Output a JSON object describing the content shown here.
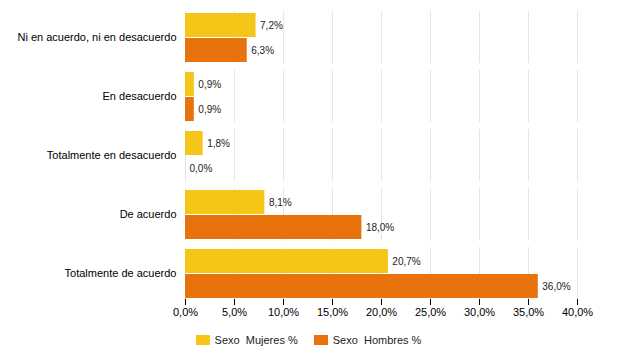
{
  "chart_data": {
    "type": "bar",
    "orientation": "horizontal",
    "categories": [
      "Totalmente de acuerdo",
      "De acuerdo",
      "Totalmente en desacuerdo",
      "En desacuerdo",
      "Ni en acuerdo, ni en desacuerdo"
    ],
    "series": [
      {
        "name": "Sexo  Mujeres %",
        "color": "#F5C518",
        "values": [
          20.7,
          8.1,
          1.8,
          0.9,
          7.2
        ],
        "value_labels": [
          "20,7%",
          "8,1%",
          "1,8%",
          "0,9%",
          "7,2%"
        ]
      },
      {
        "name": "Sexo  Hombres %",
        "color": "#E8720C",
        "values": [
          36.0,
          18.0,
          0.0,
          0.9,
          6.3
        ],
        "value_labels": [
          "36,0%",
          "18,0%",
          "0,0%",
          "0,9%",
          "6,3%"
        ]
      }
    ],
    "xlim": [
      0,
      40
    ],
    "xticks": [
      {
        "value": 0,
        "label": "0,0%"
      },
      {
        "value": 5,
        "label": "5,0%"
      },
      {
        "value": 10,
        "label": "10,0%"
      },
      {
        "value": 15,
        "label": "15,0%"
      },
      {
        "value": 20,
        "label": "20,0%"
      },
      {
        "value": 25,
        "label": "25,0%"
      },
      {
        "value": 30,
        "label": "30,0%"
      },
      {
        "value": 35,
        "label": "35,0%"
      },
      {
        "value": 40,
        "label": "40,0%"
      }
    ],
    "grid": true,
    "legend": "bottom",
    "data_labels": true
  }
}
